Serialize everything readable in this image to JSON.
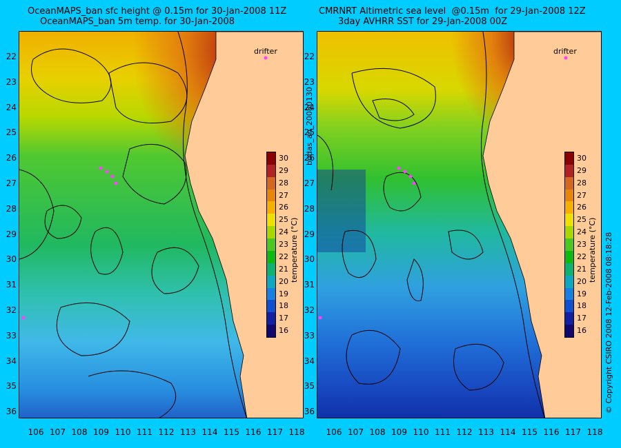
{
  "left_panel": {
    "title_line1": "OceanMAPS_ban sfc height @ 0.15m for 30-Jan-2008 11Z",
    "title_line2": "OceanMAPS_ban 5m temp. for 30-Jan-2008",
    "drifter_label": "drifter"
  },
  "right_panel": {
    "title_line1": "CMRNRT Altimetric sea level  @0.15m  for 29-Jan-2008 12Z",
    "title_line2": "3day AVHRR SST for 29-Jan-2008 00Z",
    "drifter_label": "drifter"
  },
  "middle_vertical_label": "bodas_an_20080130",
  "copyright_label": "© Copyright CSIRO 2008   12-Feb-2008 08:18:28",
  "axis": {
    "lat_ticks": [
      "22",
      "23",
      "24",
      "25",
      "26",
      "27",
      "28",
      "29",
      "30",
      "31",
      "32",
      "33",
      "34",
      "35",
      "36"
    ],
    "lon_ticks": [
      "106",
      "107",
      "108",
      "109",
      "110",
      "111",
      "112",
      "113",
      "114",
      "115",
      "116",
      "117",
      "118"
    ]
  },
  "colorbar": {
    "ticks": [
      "30",
      "29",
      "28",
      "27",
      "26",
      "25",
      "24",
      "23",
      "22",
      "21",
      "20",
      "19",
      "18",
      "17",
      "16"
    ],
    "label": "temperature (°C)",
    "colors": [
      "#8b0000",
      "#b22222",
      "#d2691e",
      "#e8860a",
      "#f5b000",
      "#f0e000",
      "#a8d800",
      "#4cc820",
      "#10b810",
      "#10b070",
      "#10a8c0",
      "#1880e0",
      "#1050d0",
      "#1020a0",
      "#100870"
    ]
  },
  "land_color": "#ffcc99"
}
